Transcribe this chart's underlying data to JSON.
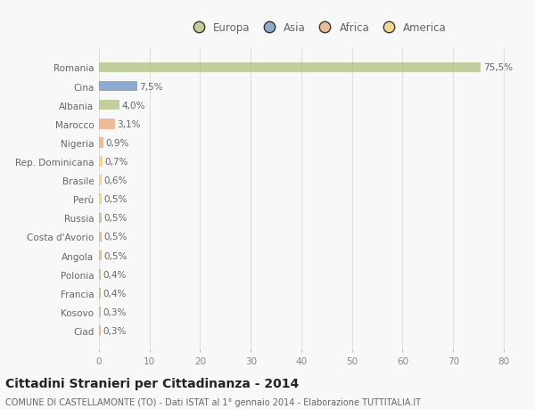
{
  "categories": [
    "Romania",
    "Cina",
    "Albania",
    "Marocco",
    "Nigeria",
    "Rep. Dominicana",
    "Brasile",
    "Perù",
    "Russia",
    "Costa d'Avorio",
    "Angola",
    "Polonia",
    "Francia",
    "Kosovo",
    "Ciad"
  ],
  "values": [
    75.5,
    7.5,
    4.0,
    3.1,
    0.9,
    0.7,
    0.6,
    0.5,
    0.5,
    0.5,
    0.5,
    0.4,
    0.4,
    0.3,
    0.3
  ],
  "labels": [
    "75,5%",
    "7,5%",
    "4,0%",
    "3,1%",
    "0,9%",
    "0,7%",
    "0,6%",
    "0,5%",
    "0,5%",
    "0,5%",
    "0,5%",
    "0,4%",
    "0,4%",
    "0,3%",
    "0,3%"
  ],
  "continents": [
    "Europa",
    "Asia",
    "Europa",
    "Africa",
    "Africa",
    "America",
    "America",
    "America",
    "Europa",
    "Africa",
    "Africa",
    "Europa",
    "Europa",
    "Europa",
    "Africa"
  ],
  "continent_colors": {
    "Europa": "#afc180",
    "Asia": "#6b90c0",
    "Africa": "#e8a878",
    "America": "#f0cc70"
  },
  "legend_entries": [
    "Europa",
    "Asia",
    "Africa",
    "America"
  ],
  "legend_colors": [
    "#afc180",
    "#6b90c0",
    "#e8a878",
    "#f0cc70"
  ],
  "xlim": [
    0,
    83
  ],
  "xticks": [
    0,
    10,
    20,
    30,
    40,
    50,
    60,
    70,
    80
  ],
  "title": "Cittadini Stranieri per Cittadinanza - 2014",
  "subtitle": "COMUNE DI CASTELLAMONTE (TO) - Dati ISTAT al 1° gennaio 2014 - Elaborazione TUTTITALIA.IT",
  "background_color": "#f8f8f8",
  "grid_color": "#e0e0e0",
  "bar_alpha": 0.75,
  "label_fontsize": 7.5,
  "tick_fontsize": 7.5,
  "title_fontsize": 10,
  "subtitle_fontsize": 7,
  "legend_fontsize": 8.5
}
